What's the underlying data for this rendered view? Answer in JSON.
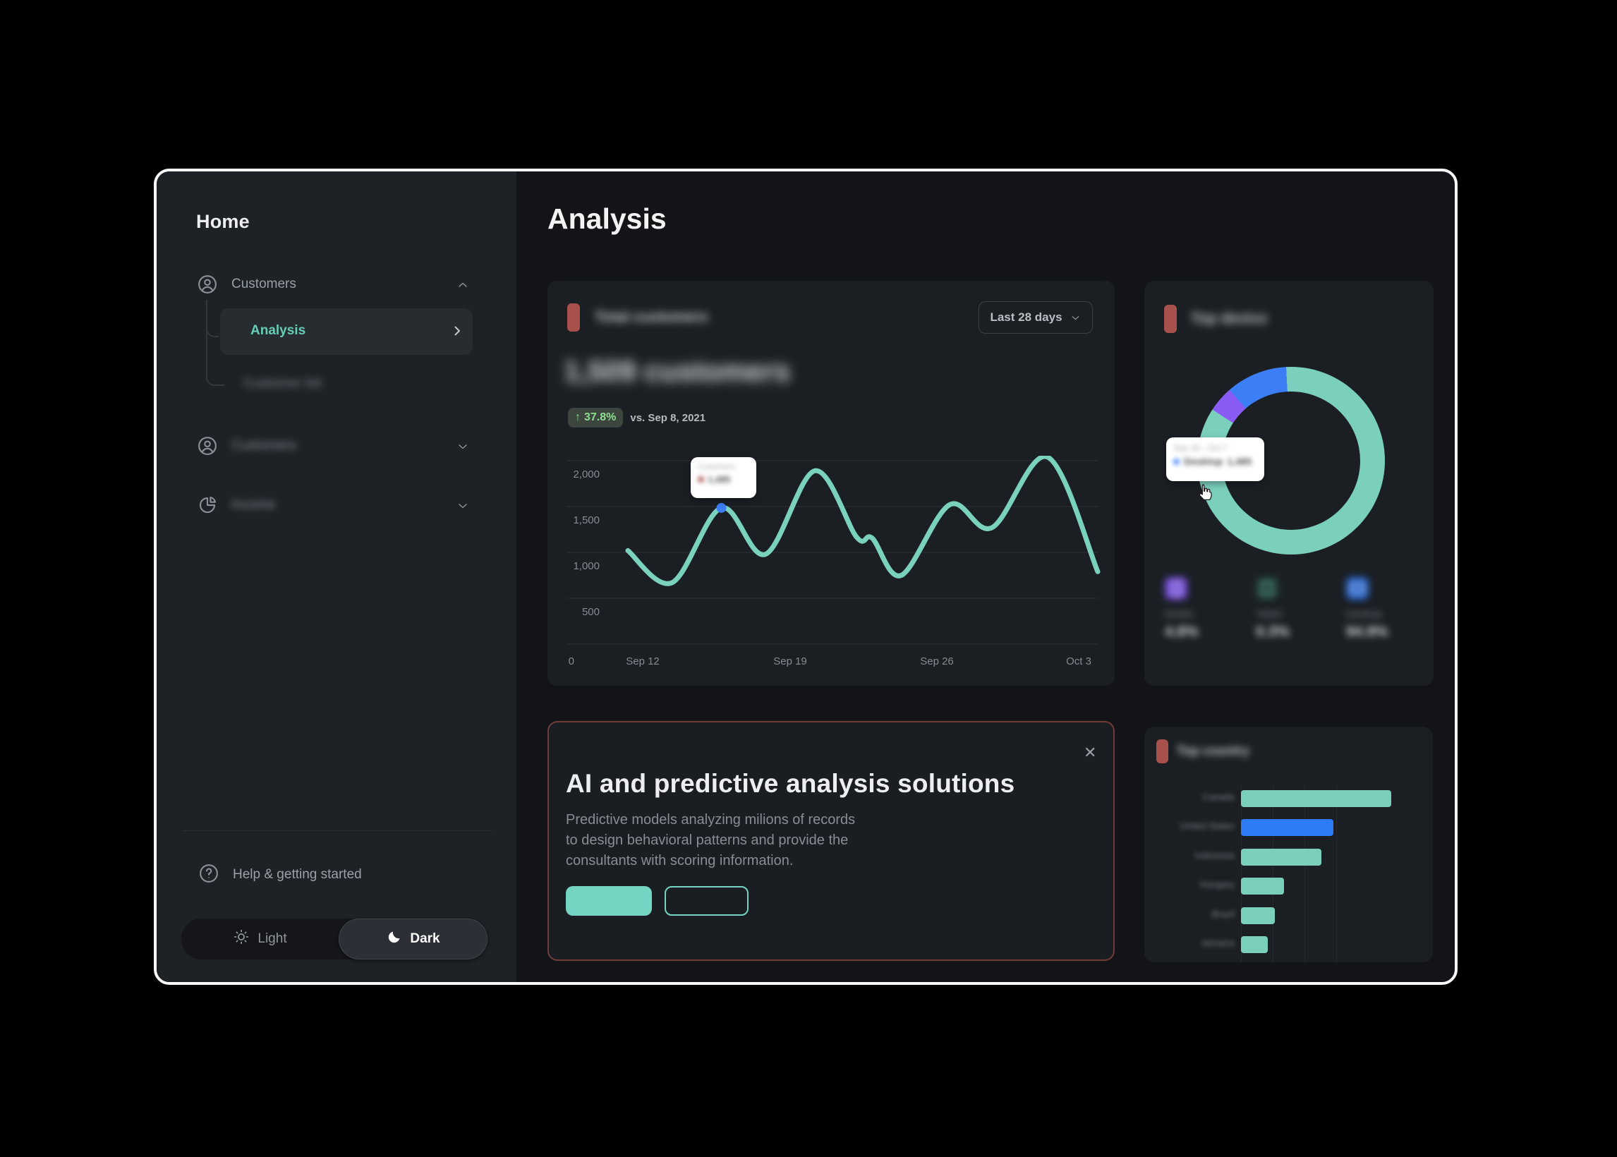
{
  "theme": {
    "accent_teal": "#74d6c2",
    "accent_blue": "#3c7ef6",
    "accent_purple": "#8a5cf6",
    "marker_red": "#a8504c",
    "positive_green": "#8edd8f",
    "promo_border": "#6f3c3a",
    "selected_nav_text": "#66cdb8"
  },
  "sidebar": {
    "title": "Home",
    "nav": [
      {
        "label": "Customers"
      },
      {
        "label": "Analysis"
      },
      {
        "label": "Customer list"
      },
      {
        "label": "Customers"
      },
      {
        "label": "Income"
      }
    ],
    "help_label": "Help & getting started",
    "theme_toggle": {
      "light_label": "Light",
      "dark_label": "Dark",
      "active": "Dark"
    }
  },
  "main": {
    "page_title": "Analysis",
    "total_customers": {
      "card_title": "Total customers",
      "range_dropdown": "Last 28 days",
      "headline": "1,509 customers",
      "delta_arrow": "↑",
      "delta": "37.8%",
      "delta_caption": "vs. Sep 8, 2021",
      "tooltip_label": "Customers",
      "tooltip_value": "1,485"
    },
    "top_device": {
      "card_title": "Top device",
      "tooltip_period": "Sep 30 - Oct 7",
      "tooltip_label": "Desktop",
      "tooltip_value": "1,485",
      "stats": [
        {
          "label": "Mobile",
          "value": "4.8%"
        },
        {
          "label": "Tablet",
          "value": "0.3%"
        },
        {
          "label": "Desktop",
          "value": "94.9%"
        }
      ]
    },
    "promo": {
      "close_icon": "✕",
      "title": "AI and predictive analysis solutions",
      "description": "Predictive models analyzing milions of records\nto design behavioral patterns and provide the\nconsultants with scoring information.",
      "primary_button_label": "",
      "secondary_button_label": ""
    },
    "top_country": {
      "card_title": "Top country"
    }
  },
  "chart_data": [
    {
      "type": "line",
      "title": "Total customers over last 28 days",
      "series": [
        {
          "name": "Customers",
          "x_frac": [
            0,
            0.094,
            0.199,
            0.293,
            0.398,
            0.487,
            0.52,
            0.582,
            0.685,
            0.775,
            0.893,
            1
          ],
          "values": [
            1020,
            670,
            1485,
            980,
            1890,
            1165,
            1155,
            750,
            1520,
            1270,
            2040,
            790
          ]
        }
      ],
      "highlight_index": 2,
      "y_tick_labels": [
        "2,000",
        "1,500",
        "1,000",
        "500"
      ],
      "origin_label": "0",
      "x_tick_labels": [
        "Sep 12",
        "Sep 19",
        "Sep 26",
        "Oct 3"
      ],
      "ylim": [
        0,
        2000
      ],
      "grid": "horizontal",
      "line_color": "#7ad2be",
      "point_color": "#3c7ef6"
    },
    {
      "type": "pie",
      "variant": "donut",
      "title": "Top device",
      "segments": [
        {
          "name": "Desktop",
          "value": 94.9,
          "color": "#7bd0bd"
        },
        {
          "name": "Mobile",
          "value": 4.8,
          "color": "#3c7ef6"
        },
        {
          "name": "Tablet",
          "value": 0.3,
          "color": "#8a5cf6"
        }
      ],
      "display_arcs": [
        {
          "color": "#7bd0bd",
          "from": 0,
          "to": 303
        },
        {
          "color": "#8a5cf6",
          "from": 303,
          "to": 319
        },
        {
          "color": "#3c7ef6",
          "from": 319,
          "to": 357
        },
        {
          "color": "#7bd0bd",
          "from": 357,
          "to": 360
        }
      ],
      "legend_position": "none"
    },
    {
      "type": "bar",
      "orientation": "horizontal",
      "title": "Top country",
      "categories": [
        "Canada",
        "United States",
        "Indonesia",
        "Hungary",
        "Brazil",
        "Jamaica"
      ],
      "values_pct_of_max": [
        100,
        61.5,
        53.5,
        28.6,
        22.5,
        17.8
      ],
      "colors": [
        "#7bd0bd",
        "#2e7bf6",
        "#7bd0bd",
        "#7bd0bd",
        "#7bd0bd",
        "#7bd0bd"
      ],
      "grid": "vertical"
    }
  ]
}
